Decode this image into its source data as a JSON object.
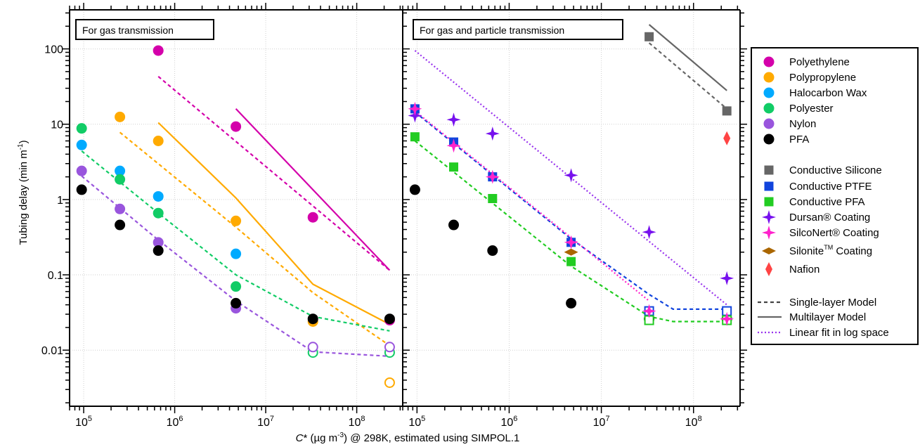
{
  "chart_data": {
    "type": "scatter",
    "xscale": "log",
    "yscale": "log",
    "xlim": [
      70000,
      320000000
    ],
    "ylim": [
      0.0018,
      330
    ],
    "xticks": [
      {
        "value": 100000,
        "base": "10",
        "exp": "5"
      },
      {
        "value": 1000000,
        "base": "10",
        "exp": "6"
      },
      {
        "value": 10000000,
        "base": "10",
        "exp": "7"
      },
      {
        "value": 100000000,
        "base": "10",
        "exp": "8"
      }
    ],
    "yticks": [
      {
        "value": 100,
        "label": "100"
      },
      {
        "value": 10,
        "label": "10"
      },
      {
        "value": 1,
        "label": "1"
      },
      {
        "value": 0.1,
        "label": "0.1"
      },
      {
        "value": 0.01,
        "label": "0.01"
      }
    ],
    "grid": true,
    "ylabel": {
      "main": "Tubing delay (min m",
      "sup": "-1",
      "tail": ")"
    },
    "xlabel": {
      "c": "C",
      "star": "* (µg m",
      "sup": "-3",
      "tail": ") @ 298K, estimated using SIMPOL.1"
    },
    "legend_position": "right",
    "panels": [
      {
        "title": "For gas transmission",
        "points": [
          {
            "series": "Polyethylene",
            "marker": "circle",
            "color": "#d400aa",
            "fill": true,
            "data": [
              [
                660000,
                95
              ],
              [
                4700000,
                9.3
              ],
              [
                33000000,
                0.58
              ],
              [
                230000000,
                0.025
              ]
            ]
          },
          {
            "series": "Polypropylene",
            "marker": "circle",
            "color": "#ffaa00",
            "fill": true,
            "data": [
              [
                250000,
                12.5
              ],
              [
                660000,
                6
              ],
              [
                4700000,
                0.52
              ],
              [
                33000000,
                0.024
              ]
            ]
          },
          {
            "series": "Polypropylene",
            "marker": "circle",
            "color": "#ffaa00",
            "fill": false,
            "data": [
              [
                230000000,
                0.0037
              ]
            ]
          },
          {
            "series": "Halocarbon Wax",
            "marker": "circle",
            "color": "#00aaff",
            "fill": true,
            "data": [
              [
                95000,
                5.3
              ],
              [
                250000,
                2.4
              ],
              [
                660000,
                1.1
              ],
              [
                4700000,
                0.19
              ]
            ]
          },
          {
            "series": "Polyester",
            "marker": "circle",
            "color": "#11cc66",
            "fill": true,
            "data": [
              [
                95000,
                8.8
              ],
              [
                250000,
                1.85
              ],
              [
                660000,
                0.66
              ],
              [
                4700000,
                0.07
              ]
            ]
          },
          {
            "series": "Polyester",
            "marker": "circle",
            "color": "#11cc66",
            "fill": false,
            "data": [
              [
                33000000,
                0.0093
              ],
              [
                230000000,
                0.0093
              ]
            ]
          },
          {
            "series": "Nylon",
            "marker": "circle",
            "color": "#9955dd",
            "fill": true,
            "data": [
              [
                95000,
                2.4
              ],
              [
                250000,
                0.75
              ],
              [
                660000,
                0.27
              ],
              [
                4700000,
                0.036
              ]
            ]
          },
          {
            "series": "Nylon",
            "marker": "circle",
            "color": "#9955dd",
            "fill": false,
            "data": [
              [
                33000000,
                0.011
              ],
              [
                230000000,
                0.011
              ]
            ]
          },
          {
            "series": "PFA",
            "marker": "circle",
            "color": "#000000",
            "fill": true,
            "data": [
              [
                95000,
                1.35
              ],
              [
                250000,
                0.46
              ],
              [
                660000,
                0.21
              ],
              [
                4700000,
                0.042
              ],
              [
                33000000,
                0.026
              ],
              [
                230000000,
                0.026
              ]
            ]
          }
        ],
        "lines": [
          {
            "series": "Polyethylene",
            "style": "dashed",
            "color": "#d400aa",
            "data": [
              [
                660000,
                43
              ],
              [
                230000000,
                0.115
              ]
            ]
          },
          {
            "series": "Polyethylene",
            "style": "solid",
            "color": "#d400aa",
            "data": [
              [
                4700000,
                16
              ],
              [
                230000000,
                0.115
              ]
            ]
          },
          {
            "series": "Polypropylene",
            "style": "dashed",
            "color": "#ffaa00",
            "data": [
              [
                250000,
                7.8
              ],
              [
                4700000,
                0.43
              ],
              [
                33000000,
                0.058
              ],
              [
                230000000,
                0.0115
              ]
            ]
          },
          {
            "series": "Polypropylene",
            "style": "solid",
            "color": "#ffaa00",
            "data": [
              [
                660000,
                10.5
              ],
              [
                4700000,
                1.05
              ],
              [
                33000000,
                0.075
              ],
              [
                230000000,
                0.022
              ]
            ]
          },
          {
            "series": "Polyester",
            "style": "dashed",
            "color": "#11cc66",
            "data": [
              [
                95000,
                4.4
              ],
              [
                660000,
                0.66
              ],
              [
                4700000,
                0.1
              ],
              [
                33000000,
                0.028
              ],
              [
                230000000,
                0.018
              ]
            ]
          },
          {
            "series": "Nylon",
            "style": "dashed",
            "color": "#9955dd",
            "data": [
              [
                95000,
                2.05
              ],
              [
                660000,
                0.29
              ],
              [
                4700000,
                0.045
              ],
              [
                33000000,
                0.0095
              ],
              [
                230000000,
                0.0083
              ]
            ]
          }
        ]
      },
      {
        "title": "For gas and particle transmission",
        "points": [
          {
            "series": "PFA",
            "marker": "circle",
            "color": "#000000",
            "fill": true,
            "data": [
              [
                95000,
                1.35
              ],
              [
                250000,
                0.46
              ],
              [
                660000,
                0.21
              ],
              [
                4700000,
                0.042
              ]
            ]
          },
          {
            "series": "PFA",
            "marker": "circle",
            "color": "#000000",
            "fill": false,
            "data": [
              [
                33000000,
                0.026
              ],
              [
                230000000,
                0.026
              ]
            ]
          },
          {
            "series": "Conductive Silicone",
            "marker": "square",
            "color": "#666666",
            "fill": true,
            "data": [
              [
                33000000,
                145
              ],
              [
                230000000,
                15
              ]
            ]
          },
          {
            "series": "Conductive PTFE",
            "marker": "square",
            "color": "#1144dd",
            "fill": true,
            "data": [
              [
                95000,
                16
              ],
              [
                250000,
                5.8
              ],
              [
                660000,
                2.0
              ],
              [
                4700000,
                0.27
              ]
            ]
          },
          {
            "series": "Conductive PTFE",
            "marker": "square",
            "color": "#1144dd",
            "fill": false,
            "data": [
              [
                33000000,
                0.033
              ],
              [
                230000000,
                0.033
              ]
            ]
          },
          {
            "series": "Conductive PFA",
            "marker": "square",
            "color": "#22cc22",
            "fill": true,
            "data": [
              [
                95000,
                6.8
              ],
              [
                250000,
                2.7
              ],
              [
                660000,
                1.03
              ],
              [
                4700000,
                0.15
              ]
            ]
          },
          {
            "series": "Conductive PFA",
            "marker": "square",
            "color": "#22cc22",
            "fill": false,
            "data": [
              [
                33000000,
                0.025
              ],
              [
                230000000,
                0.025
              ]
            ]
          },
          {
            "series": "Dursan® Coating",
            "marker": "star",
            "color": "#7711ee",
            "fill": true,
            "data": [
              [
                95000,
                13
              ],
              [
                250000,
                11.5
              ],
              [
                660000,
                7.5
              ],
              [
                4700000,
                2.1
              ],
              [
                33000000,
                0.37
              ],
              [
                230000000,
                0.09
              ]
            ]
          },
          {
            "series": "SilcoNert® Coating",
            "marker": "star",
            "color": "#ff22cc",
            "fill": true,
            "data": [
              [
                95000,
                16
              ],
              [
                250000,
                5.2
              ],
              [
                660000,
                2.0
              ],
              [
                4700000,
                0.27
              ],
              [
                33000000,
                0.033
              ],
              [
                230000000,
                0.026
              ]
            ]
          },
          {
            "series": "Silonite™ Coating",
            "marker": "hdiamond",
            "color": "#aa6600",
            "fill": true,
            "data": [
              [
                4700000,
                0.2
              ]
            ]
          },
          {
            "series": "Nafion",
            "marker": "vdiamond",
            "color": "#ff4444",
            "fill": true,
            "data": [
              [
                230000000,
                6.5
              ]
            ]
          }
        ],
        "lines": [
          {
            "series": "Conductive Silicone",
            "style": "dashed",
            "color": "#666666",
            "data": [
              [
                33000000,
                120
              ],
              [
                230000000,
                16
              ]
            ]
          },
          {
            "series": "Conductive Silicone",
            "style": "solid",
            "color": "#666666",
            "data": [
              [
                33000000,
                210
              ],
              [
                230000000,
                28
              ]
            ]
          },
          {
            "series": "Conductive PTFE",
            "style": "dashed",
            "color": "#1144dd",
            "data": [
              [
                95000,
                14.5
              ],
              [
                4700000,
                0.3
              ],
              [
                33000000,
                0.055
              ],
              [
                60000000,
                0.035
              ],
              [
                230000000,
                0.035
              ]
            ]
          },
          {
            "series": "Conductive PFA",
            "style": "dashed",
            "color": "#22cc22",
            "data": [
              [
                95000,
                6.0
              ],
              [
                4700000,
                0.13
              ],
              [
                33000000,
                0.028
              ],
              [
                60000000,
                0.024
              ],
              [
                230000000,
                0.024
              ]
            ]
          },
          {
            "series": "SilcoNert® Coating",
            "style": "dotted",
            "color": "#ff22cc",
            "data": [
              [
                95000,
                15
              ],
              [
                33000000,
                0.045
              ]
            ]
          },
          {
            "series": "Dursan® Coating",
            "style": "dotted",
            "color": "#9933ee",
            "data": [
              [
                95000,
                95
              ],
              [
                230000000,
                0.04
              ]
            ]
          }
        ]
      }
    ],
    "legend": {
      "markers": [
        {
          "label": "Polyethylene",
          "marker": "circle",
          "color": "#d400aa"
        },
        {
          "label": "Polypropylene",
          "marker": "circle",
          "color": "#ffaa00"
        },
        {
          "label": "Halocarbon Wax",
          "marker": "circle",
          "color": "#00aaff"
        },
        {
          "label": "Polyester",
          "marker": "circle",
          "color": "#11cc66"
        },
        {
          "label": "Nylon",
          "marker": "circle",
          "color": "#9955dd"
        },
        {
          "label": "PFA",
          "marker": "circle",
          "color": "#000000"
        },
        {
          "label": "Conductive Silicone",
          "marker": "square",
          "color": "#666666"
        },
        {
          "label": "Conductive PTFE",
          "marker": "square",
          "color": "#1144dd"
        },
        {
          "label": "Conductive PFA",
          "marker": "square",
          "color": "#22cc22"
        },
        {
          "label": "Dursan® Coating",
          "marker": "star",
          "color": "#7711ee"
        },
        {
          "label": "SilcoNert® Coating",
          "marker": "star",
          "color": "#ff22cc"
        },
        {
          "label": "Silonite",
          "sup": "TM",
          "tail": " Coating",
          "marker": "hdiamond",
          "color": "#aa6600"
        },
        {
          "label": "Nafion",
          "marker": "vdiamond",
          "color": "#ff4444"
        }
      ],
      "lines": [
        {
          "label": "Single-layer Model",
          "style": "dashed",
          "color": "#444444"
        },
        {
          "label": "Multilayer Model",
          "style": "solid",
          "color": "#666666"
        },
        {
          "label": "Linear fit in log space",
          "style": "dotted",
          "color": "#9933ee"
        }
      ]
    }
  }
}
